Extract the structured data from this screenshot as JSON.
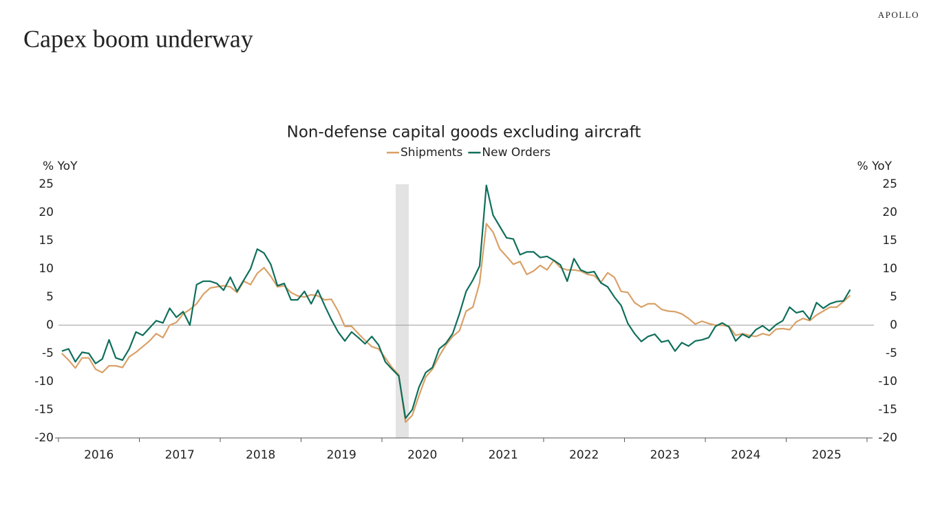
{
  "brand": "APOLLO",
  "headline": "Capex boom underway",
  "chart_data": {
    "type": "line",
    "title": "Non-defense capital goods excluding aircraft",
    "ylabel": "% YoY",
    "y2label": "% YoY",
    "year_labels": [
      "2016",
      "2017",
      "2018",
      "2019",
      "2020",
      "2021",
      "2022",
      "2023",
      "2024",
      "2025"
    ],
    "ylim": [
      -20,
      25
    ],
    "yticks": [
      -20,
      -15,
      -10,
      -5,
      0,
      5,
      10,
      15,
      20,
      25
    ],
    "y2lim": [
      -20,
      25
    ],
    "y2ticks": [
      -20,
      -15,
      -10,
      -5,
      0,
      5,
      10,
      15,
      20,
      25
    ],
    "zero_line": true,
    "legend": "top",
    "series": [
      {
        "name": "Shipments",
        "color": "#d9a066",
        "values": [
          -5,
          -6.2,
          -7.6,
          -5.8,
          -5.8,
          -7.8,
          -8.4,
          -7.2,
          -7.2,
          -7.5,
          -5.6,
          -4.8,
          -3.8,
          -2.8,
          -1.5,
          -2.2,
          0,
          0.5,
          2,
          2.8,
          3.8,
          5.5,
          6.6,
          6.8,
          7,
          6.8,
          5.8,
          7.8,
          7.2,
          9.2,
          10.2,
          8.7,
          6.8,
          7,
          5.8,
          5.2,
          5,
          5.4,
          5.2,
          4.5,
          4.6,
          2.5,
          -0.2,
          -0.2,
          -1.5,
          -2.7,
          -3.8,
          -4.2,
          -5.8,
          -7.5,
          -8.8,
          -17.2,
          -16,
          -12.5,
          -9.2,
          -7.8,
          -5.5,
          -3.5,
          -2,
          -1,
          2.5,
          3.2,
          7.5,
          18,
          16.5,
          13.5,
          12.2,
          10.8,
          11.3,
          9,
          9.6,
          10.6,
          9.8,
          11.5,
          10.2,
          9.8,
          9.8,
          9.6,
          9,
          8.8,
          7.6,
          9.3,
          8.5,
          6,
          5.8,
          4,
          3.2,
          3.8,
          3.8,
          2.8,
          2.5,
          2.4,
          2,
          1.2,
          0.2,
          0.7,
          0.3,
          0,
          0,
          -0.2,
          -1.8,
          -1.5,
          -1.8,
          -2,
          -1.5,
          -1.8,
          -0.7,
          -0.6,
          -0.8,
          0.6,
          1.2,
          0.8,
          1.8,
          2.5,
          3.2,
          3.2,
          4.2,
          5.3
        ]
      },
      {
        "name": "New Orders",
        "color": "#0e6e5a",
        "values": [
          -4.6,
          -4.2,
          -6.5,
          -4.8,
          -5,
          -6.8,
          -6,
          -2.6,
          -5.8,
          -6.2,
          -4.2,
          -1.2,
          -1.8,
          -0.5,
          0.8,
          0.4,
          3,
          1.4,
          2.4,
          0,
          7.2,
          7.8,
          7.8,
          7.4,
          6.2,
          8.5,
          6,
          8,
          10,
          13.5,
          12.8,
          10.8,
          7,
          7.4,
          4.5,
          4.5,
          6,
          3.8,
          6.2,
          3.5,
          1,
          -1.2,
          -2.8,
          -1.2,
          -2.2,
          -3.3,
          -2,
          -3.5,
          -6.5,
          -7.8,
          -9,
          -16.5,
          -15,
          -11,
          -8.4,
          -7.5,
          -4.2,
          -3.2,
          -1.5,
          2,
          6,
          8,
          10.5,
          24.8,
          19.5,
          17.5,
          15.5,
          15.3,
          12.5,
          13,
          13,
          12,
          12.2,
          11.5,
          10.7,
          7.8,
          11.8,
          9.8,
          9.3,
          9.5,
          7.5,
          6.8,
          5,
          3.5,
          0.3,
          -1.5,
          -2.9,
          -2,
          -1.6,
          -3,
          -2.7,
          -4.6,
          -3.1,
          -3.7,
          -2.8,
          -2.6,
          -2.2,
          -0.2,
          0.4,
          -0.3,
          -2.8,
          -1.6,
          -2.2,
          -0.8,
          -0.1,
          -1,
          0.1,
          0.8,
          3.2,
          2.2,
          2.5,
          1,
          4,
          3,
          3.8,
          4.2,
          4.3,
          6.3
        ]
      }
    ]
  }
}
